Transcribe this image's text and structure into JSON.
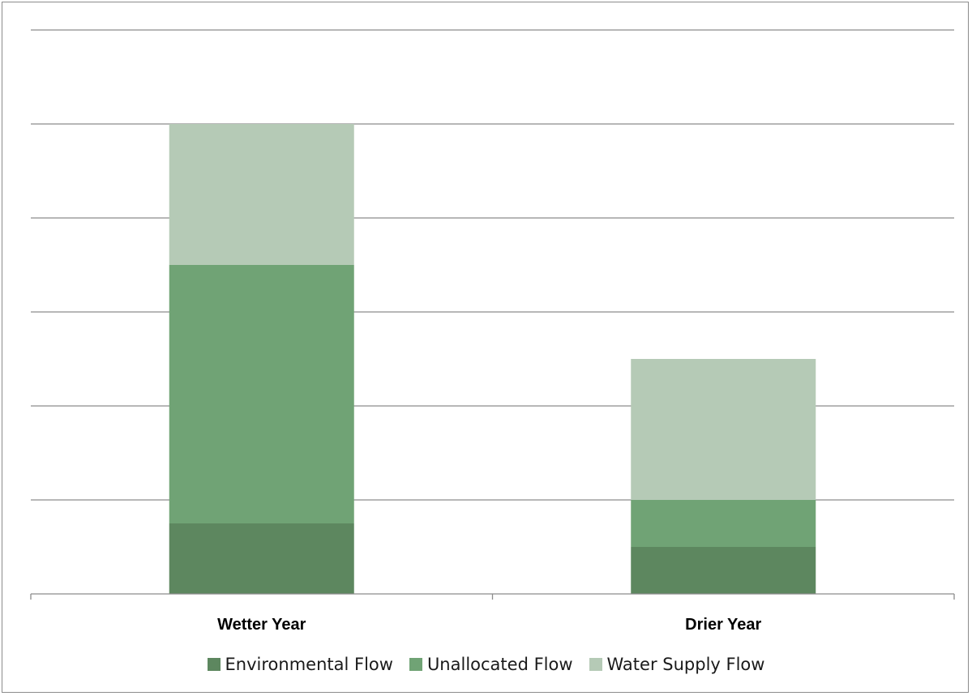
{
  "chart_data": {
    "type": "bar",
    "stacked": true,
    "categories": [
      "Wetter Year",
      "Drier Year"
    ],
    "series": [
      {
        "name": "Environmental Flow",
        "values": [
          0.75,
          0.5
        ],
        "color": "#5d875f"
      },
      {
        "name": "Unallocated Flow",
        "values": [
          2.75,
          0.5
        ],
        "color": "#70a375"
      },
      {
        "name": "Water Supply Flow",
        "values": [
          1.5,
          1.5
        ],
        "color": "#b5cab6"
      }
    ],
    "ylim": [
      0,
      6
    ],
    "grid": true,
    "legend": "bottom",
    "title": "",
    "xlabel": "",
    "ylabel": ""
  }
}
